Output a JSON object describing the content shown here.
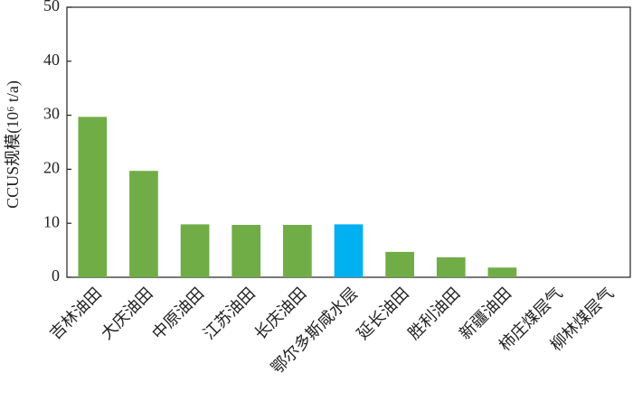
{
  "chart_data": {
    "type": "bar",
    "ylabel": "CCUS规模(10⁶ t/a)",
    "categories": [
      "吉林油田",
      "大庆油田",
      "中原油田",
      "江苏油田",
      "长庆油田",
      "鄂尔多斯咸水层",
      "延长油田",
      "胜利油田",
      "新疆油田",
      "柿庄煤层气",
      "柳林煤层气"
    ],
    "values": [
      29.7,
      19.7,
      9.8,
      9.7,
      9.7,
      9.8,
      4.7,
      3.7,
      1.8,
      0,
      0
    ],
    "colors": [
      "#70ad47",
      "#70ad47",
      "#70ad47",
      "#70ad47",
      "#70ad47",
      "#00b0f0",
      "#70ad47",
      "#70ad47",
      "#70ad47",
      "#70ad47",
      "#70ad47"
    ],
    "ylim": [
      0,
      50
    ],
    "yticks": [
      0,
      10,
      20,
      30,
      40,
      50
    ],
    "grid": false
  }
}
